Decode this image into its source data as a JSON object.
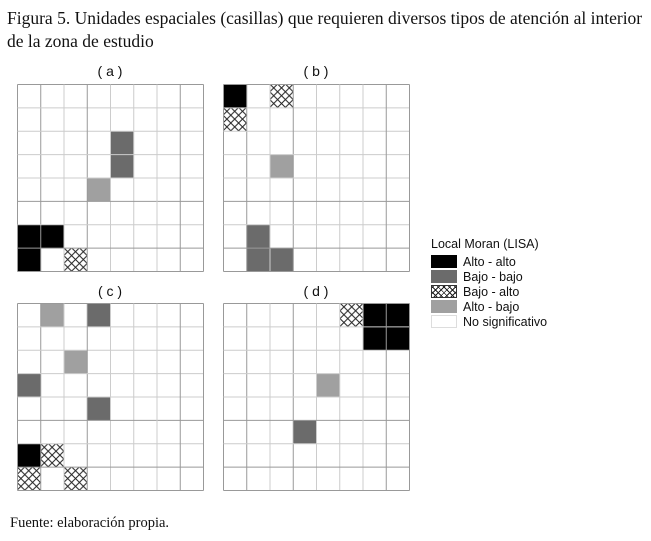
{
  "title": "Figura 5. Unidades espaciales (casillas) que requieren diversos tipos de atención al interior de la zona de estudio",
  "source": "Fuente: elaboración propia.",
  "legend": {
    "title": "Local Moran (LISA)",
    "items": [
      {
        "key": "HH",
        "label": "Alto - alto",
        "color": "#000000"
      },
      {
        "key": "LL",
        "label": "Bajo - bajo",
        "color": "#6b6b6b"
      },
      {
        "key": "LH",
        "label": "Bajo - alto",
        "color": "hatch"
      },
      {
        "key": "HL",
        "label": "Alto - bajo",
        "color": "#a0a0a0"
      },
      {
        "key": "NS",
        "label": "No significativo",
        "color": "#ffffff"
      }
    ]
  },
  "grid_size": 8,
  "panels": [
    {
      "label": "( a )",
      "cells": [
        {
          "row": 6,
          "col": 0,
          "type": "HH"
        },
        {
          "row": 6,
          "col": 1,
          "type": "HH"
        },
        {
          "row": 7,
          "col": 0,
          "type": "HH"
        },
        {
          "row": 2,
          "col": 4,
          "type": "LL"
        },
        {
          "row": 3,
          "col": 4,
          "type": "LL"
        },
        {
          "row": 7,
          "col": 2,
          "type": "LH"
        },
        {
          "row": 4,
          "col": 3,
          "type": "HL"
        }
      ]
    },
    {
      "label": "( b )",
      "cells": [
        {
          "row": 0,
          "col": 0,
          "type": "HH"
        },
        {
          "row": 0,
          "col": 2,
          "type": "LH"
        },
        {
          "row": 1,
          "col": 0,
          "type": "LH"
        },
        {
          "row": 3,
          "col": 2,
          "type": "HL"
        },
        {
          "row": 6,
          "col": 1,
          "type": "LL"
        },
        {
          "row": 7,
          "col": 1,
          "type": "LL"
        },
        {
          "row": 7,
          "col": 2,
          "type": "LL"
        }
      ]
    },
    {
      "label": "( c )",
      "cells": [
        {
          "row": 0,
          "col": 1,
          "type": "HL"
        },
        {
          "row": 2,
          "col": 2,
          "type": "HL"
        },
        {
          "row": 0,
          "col": 3,
          "type": "LL"
        },
        {
          "row": 3,
          "col": 0,
          "type": "LL"
        },
        {
          "row": 4,
          "col": 3,
          "type": "LL"
        },
        {
          "row": 6,
          "col": 0,
          "type": "HH"
        },
        {
          "row": 6,
          "col": 1,
          "type": "LH"
        },
        {
          "row": 7,
          "col": 0,
          "type": "LH"
        },
        {
          "row": 7,
          "col": 2,
          "type": "LH"
        }
      ]
    },
    {
      "label": "( d )",
      "cells": [
        {
          "row": 0,
          "col": 5,
          "type": "LH"
        },
        {
          "row": 0,
          "col": 6,
          "type": "HH"
        },
        {
          "row": 0,
          "col": 7,
          "type": "HH"
        },
        {
          "row": 1,
          "col": 6,
          "type": "HH"
        },
        {
          "row": 1,
          "col": 7,
          "type": "HH"
        },
        {
          "row": 3,
          "col": 4,
          "type": "HL"
        },
        {
          "row": 5,
          "col": 3,
          "type": "LL"
        }
      ]
    }
  ]
}
